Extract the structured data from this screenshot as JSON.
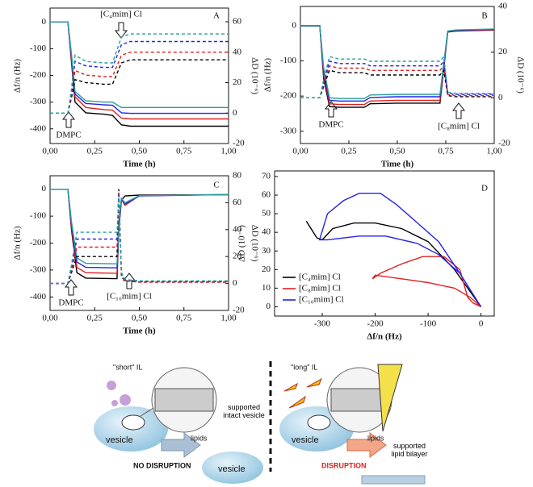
{
  "chart_data": [
    {
      "type": "line",
      "label": "A",
      "x_label": "Time (h)",
      "y_label": "Δf/n (Hz)",
      "y2_label": "ΔD (10⁻⁶)",
      "annotations": [
        "[C₄mim] Cl",
        "DMPC"
      ],
      "xlim": [
        0,
        1
      ],
      "xticks": [
        {
          "value": 0,
          "label": "0,00"
        },
        {
          "value": 0.25,
          "label": "0,25"
        },
        {
          "value": 0.5,
          "label": "0,50"
        },
        {
          "value": 0.75,
          "label": "0,75"
        },
        {
          "value": 1,
          "label": "1,00"
        }
      ],
      "ylim": [
        -455,
        52
      ],
      "yticks": [
        -400,
        -300,
        -200,
        -100,
        0
      ],
      "y2lim": [
        -20,
        69
      ],
      "y2ticks": [
        -20,
        0,
        20,
        40,
        60
      ],
      "x": [
        0,
        0.1,
        0.12,
        0.14,
        0.2,
        0.3,
        0.35,
        0.4,
        0.45,
        0.6,
        0.8,
        1.0
      ],
      "series": [
        {
          "color": "#000000",
          "style": "solid",
          "values": [
            0,
            0,
            -150,
            -300,
            -340,
            -345,
            -350,
            -385,
            -390,
            -390,
            -390,
            -390
          ]
        },
        {
          "color": "#e02020",
          "style": "solid",
          "values": [
            0,
            0,
            -140,
            -280,
            -320,
            -328,
            -330,
            -360,
            -363,
            -363,
            -363,
            -363
          ]
        },
        {
          "color": "#2222ee",
          "style": "solid",
          "values": [
            0,
            0,
            -130,
            -270,
            -305,
            -310,
            -312,
            -340,
            -342,
            -342,
            -342,
            -342
          ]
        },
        {
          "color": "#2a9d9d",
          "style": "solid",
          "values": [
            0,
            0,
            -120,
            -260,
            -295,
            -300,
            -300,
            -320,
            -320,
            -320,
            -320,
            -320
          ]
        },
        {
          "color": "#000000",
          "style": "dashed",
          "axis": "y2",
          "values": [
            0,
            0,
            10,
            22,
            20,
            19,
            19,
            33,
            35,
            35,
            35,
            35
          ]
        },
        {
          "color": "#e02020",
          "style": "dashed",
          "axis": "y2",
          "values": [
            0,
            0,
            12,
            28,
            25,
            24,
            24,
            38,
            40,
            40,
            40,
            40
          ]
        },
        {
          "color": "#2222ee",
          "style": "dashed",
          "axis": "y2",
          "values": [
            0,
            0,
            14,
            34,
            31,
            30,
            30,
            45,
            47,
            47,
            47,
            47
          ]
        },
        {
          "color": "#2a9d9d",
          "style": "dashed",
          "axis": "y2",
          "values": [
            0,
            0,
            16,
            38,
            34,
            33,
            33,
            50,
            52,
            52,
            52,
            52
          ]
        }
      ]
    },
    {
      "type": "line",
      "label": "B",
      "x_label": "Time (h)",
      "y_label": "Δf/n (Hz)",
      "y2_label": "ΔD (10⁻⁶)",
      "annotations": [
        "DMPC",
        "[C₈mim] Cl"
      ],
      "xlim": [
        0,
        1
      ],
      "xticks": [
        {
          "value": 0,
          "label": "0,00"
        },
        {
          "value": 0.25,
          "label": "0,25"
        },
        {
          "value": 0.5,
          "label": "0,50"
        },
        {
          "value": 0.75,
          "label": "0,75"
        },
        {
          "value": 1,
          "label": "1,00"
        }
      ],
      "ylim": [
        -335,
        55
      ],
      "yticks": [
        -300,
        -200,
        -100,
        0
      ],
      "y2lim": [
        -20,
        40
      ],
      "y2ticks": [
        -20,
        0,
        20,
        40
      ],
      "x": [
        0,
        0.1,
        0.12,
        0.15,
        0.2,
        0.33,
        0.36,
        0.5,
        0.72,
        0.74,
        0.76,
        0.8,
        1.0
      ],
      "series": [
        {
          "color": "#000000",
          "style": "solid",
          "values": [
            0,
            0,
            -150,
            -230,
            -232,
            -232,
            -222,
            -220,
            -220,
            -120,
            -18,
            -15,
            -12
          ]
        },
        {
          "color": "#e02020",
          "style": "solid",
          "values": [
            0,
            0,
            -140,
            -222,
            -224,
            -224,
            -214,
            -212,
            -212,
            -115,
            -17,
            -14,
            -11
          ]
        },
        {
          "color": "#2222ee",
          "style": "solid",
          "values": [
            0,
            0,
            -130,
            -212,
            -214,
            -214,
            -204,
            -202,
            -202,
            -110,
            -16,
            -13,
            -10
          ]
        },
        {
          "color": "#2a9d9d",
          "style": "solid",
          "values": [
            0,
            0,
            -120,
            -205,
            -207,
            -207,
            -197,
            -195,
            -195,
            -105,
            -15,
            -12,
            -9
          ]
        },
        {
          "color": "#000000",
          "style": "dashed",
          "axis": "y2",
          "values": [
            0,
            0,
            5,
            12,
            11,
            11,
            10,
            10,
            10,
            12,
            1,
            0.5,
            0.5
          ]
        },
        {
          "color": "#e02020",
          "style": "dashed",
          "axis": "y2",
          "values": [
            0,
            0,
            6,
            14,
            13,
            13,
            12,
            12,
            12,
            14,
            1.5,
            1,
            1
          ]
        },
        {
          "color": "#2222ee",
          "style": "dashed",
          "axis": "y2",
          "values": [
            0,
            0,
            7,
            16,
            15,
            15,
            14,
            14,
            14,
            16,
            2,
            1.5,
            1.5
          ]
        },
        {
          "color": "#2a9d9d",
          "style": "dashed",
          "axis": "y2",
          "values": [
            0,
            0,
            8,
            18,
            17,
            17,
            16,
            16,
            16,
            18,
            2.5,
            2,
            2
          ]
        }
      ]
    },
    {
      "type": "line",
      "label": "C",
      "x_label": "Time (h)",
      "y_label": "Δf/n (Hz)",
      "y2_label": "ΔD (10⁻⁶)",
      "annotations": [
        "DMPC",
        "[C₁₀mim] Cl"
      ],
      "xlim": [
        0,
        1
      ],
      "xticks": [
        {
          "value": 0,
          "label": "0,00"
        },
        {
          "value": 0.25,
          "label": "0,25"
        },
        {
          "value": 0.5,
          "label": "0,50"
        },
        {
          "value": 0.75,
          "label": "0,75"
        },
        {
          "value": 1,
          "label": "1,00"
        }
      ],
      "ylim": [
        -450,
        50
      ],
      "yticks": [
        -400,
        -300,
        -200,
        -100,
        0
      ],
      "y2lim": [
        -20,
        80
      ],
      "y2ticks": [
        -20,
        0,
        20,
        40,
        60,
        80
      ],
      "x": [
        0,
        0.1,
        0.12,
        0.15,
        0.2,
        0.36,
        0.375,
        0.385,
        0.4,
        0.42,
        0.5,
        1.0
      ],
      "series": [
        {
          "color": "#000000",
          "style": "solid",
          "values": [
            0,
            0,
            -150,
            -310,
            -330,
            -332,
            -332,
            -150,
            -40,
            -25,
            -22,
            -20
          ]
        },
        {
          "color": "#e02020",
          "style": "solid",
          "values": [
            0,
            0,
            -140,
            -290,
            -310,
            -312,
            -312,
            -140,
            -38,
            -60,
            -24,
            -20
          ]
        },
        {
          "color": "#2222ee",
          "style": "solid",
          "values": [
            0,
            0,
            -130,
            -270,
            -290,
            -292,
            -292,
            -130,
            -36,
            -55,
            -25,
            -20
          ]
        },
        {
          "color": "#2a9d9d",
          "style": "solid",
          "values": [
            0,
            0,
            -120,
            -255,
            -275,
            -277,
            -277,
            -120,
            -34,
            -50,
            -24,
            -20
          ]
        },
        {
          "color": "#000000",
          "style": "dashed",
          "axis": "y2",
          "values": [
            0,
            0,
            8,
            20,
            20,
            20,
            20,
            70,
            5,
            2,
            1,
            1
          ]
        },
        {
          "color": "#e02020",
          "style": "dashed",
          "axis": "y2",
          "values": [
            0,
            0,
            10,
            27,
            27,
            27,
            27,
            68,
            6,
            2,
            1,
            1
          ]
        },
        {
          "color": "#2222ee",
          "style": "dashed",
          "axis": "y2",
          "values": [
            0,
            0,
            12,
            33,
            33,
            33,
            33,
            66,
            7,
            3,
            1.5,
            1.5
          ]
        },
        {
          "color": "#2a9d9d",
          "style": "dashed",
          "axis": "y2",
          "values": [
            0,
            0,
            14,
            38,
            38,
            38,
            38,
            64,
            8,
            3,
            2,
            2
          ]
        }
      ]
    },
    {
      "type": "line",
      "label": "D",
      "x_label": "Δf/n (Hz)",
      "y_label": "ΔD (10⁻⁶)",
      "legend": "lower-left",
      "xlim": [
        -390,
        25
      ],
      "xticks": [
        -300,
        -200,
        -100,
        0
      ],
      "ylim": [
        -5,
        73
      ],
      "yticks": [
        0,
        10,
        20,
        30,
        40,
        50,
        60,
        70
      ],
      "series": [
        {
          "name": "[C₄mim] Cl",
          "color": "#000000",
          "style": "solid",
          "x": [
            -330,
            -310,
            -300,
            -280,
            -240,
            -200,
            -150,
            -100,
            -50,
            0
          ],
          "values": [
            46,
            37,
            36,
            42,
            45,
            45,
            42,
            35,
            20,
            0
          ]
        },
        {
          "name": "[C₈mim] Cl",
          "color": "#e02020",
          "style": "solid",
          "x": [
            0,
            -20,
            -50,
            -100,
            -150,
            -200,
            -205,
            -190,
            -150,
            -110,
            -70,
            -40,
            -25,
            -15,
            0
          ],
          "values": [
            0,
            5,
            10,
            13,
            15,
            17,
            15,
            18,
            23,
            27,
            27,
            20,
            5,
            2,
            0
          ]
        },
        {
          "name": "[C₁₀mim] Cl",
          "color": "#2222ee",
          "style": "solid",
          "x": [
            0,
            -40,
            -80,
            -120,
            -180,
            -230,
            -290,
            -305,
            -290,
            -260,
            -230,
            -190,
            -160,
            -120,
            -80,
            -40,
            0
          ],
          "values": [
            0,
            18,
            28,
            34,
            38,
            38,
            36,
            36,
            50,
            57,
            61,
            61,
            55,
            45,
            35,
            18,
            0
          ]
        }
      ]
    }
  ],
  "diagram": {
    "short": {
      "title": "\"short\" IL",
      "lipids": "lipids",
      "vesicle": "vesicle",
      "result": "supported intact vesicle",
      "outcome": "NO DISRUPTION",
      "result_vesicle": "vesicle"
    },
    "long": {
      "title": "\"long\" IL",
      "lipids": "lipids",
      "vesicle": "vesicle",
      "outcome": "DISRUPTION",
      "result": "supported lipid bilayer"
    }
  }
}
